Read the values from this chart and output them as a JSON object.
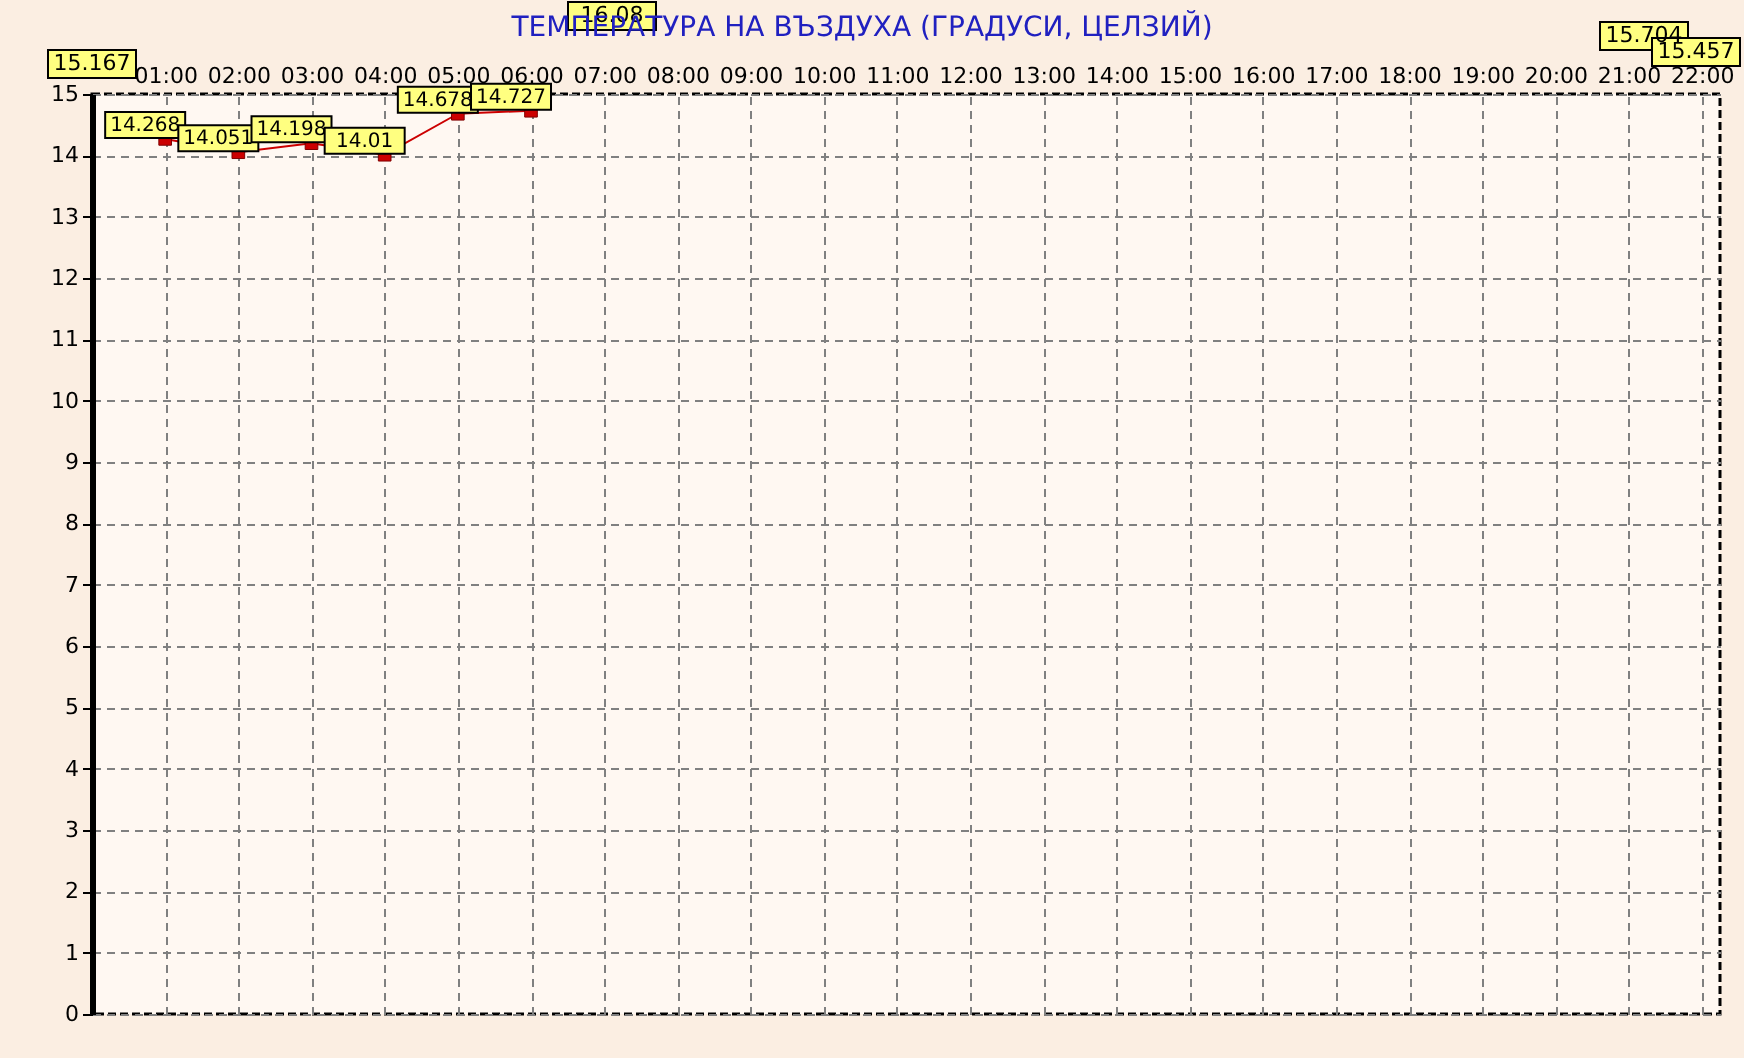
{
  "chart_data": {
    "type": "line",
    "title": "ТЕМПЕРАТУРА НА ВЪЗДУХА  (ГРАДУСИ, ЦЕЛЗИЙ)",
    "x": [
      1,
      2,
      3,
      4,
      5,
      6
    ],
    "series": [
      {
        "color": "#cc0000",
        "values": [
          14.268,
          14.051,
          14.198,
          14.01,
          14.678,
          14.727
        ]
      }
    ],
    "data_labels": true,
    "annotations": [
      "15.167",
      "16.08",
      "15.704",
      "15.457"
    ],
    "marker": "square",
    "line_style": "solid",
    "grid": true,
    "xlim": [
      0,
      22.25
    ],
    "xticks": [
      {
        "value": 1,
        "label": "01:00"
      },
      {
        "value": 2,
        "label": "02:00"
      },
      {
        "value": 3,
        "label": "03:00"
      },
      {
        "value": 4,
        "label": "04:00"
      },
      {
        "value": 5,
        "label": "05:00"
      },
      {
        "value": 6,
        "label": "06:00"
      },
      {
        "value": 7,
        "label": "07:00"
      },
      {
        "value": 8,
        "label": "08:00"
      },
      {
        "value": 9,
        "label": "09:00"
      },
      {
        "value": 10,
        "label": "10:00"
      },
      {
        "value": 11,
        "label": "11:00"
      },
      {
        "value": 12,
        "label": "12:00"
      },
      {
        "value": 13,
        "label": "13:00"
      },
      {
        "value": 14,
        "label": "14:00"
      },
      {
        "value": 15,
        "label": "15:00"
      },
      {
        "value": 16,
        "label": "16:00"
      },
      {
        "value": 17,
        "label": "17:00"
      },
      {
        "value": 18,
        "label": "18:00"
      },
      {
        "value": 19,
        "label": "19:00"
      },
      {
        "value": 20,
        "label": "20:00"
      },
      {
        "value": 21,
        "label": "21:00"
      },
      {
        "value": 22,
        "label": "22:00"
      }
    ],
    "ylim": [
      0,
      15
    ],
    "yticks": [
      0,
      1,
      2,
      3,
      4,
      5,
      6,
      7,
      8,
      9,
      10,
      11,
      12,
      13,
      14,
      15
    ]
  }
}
